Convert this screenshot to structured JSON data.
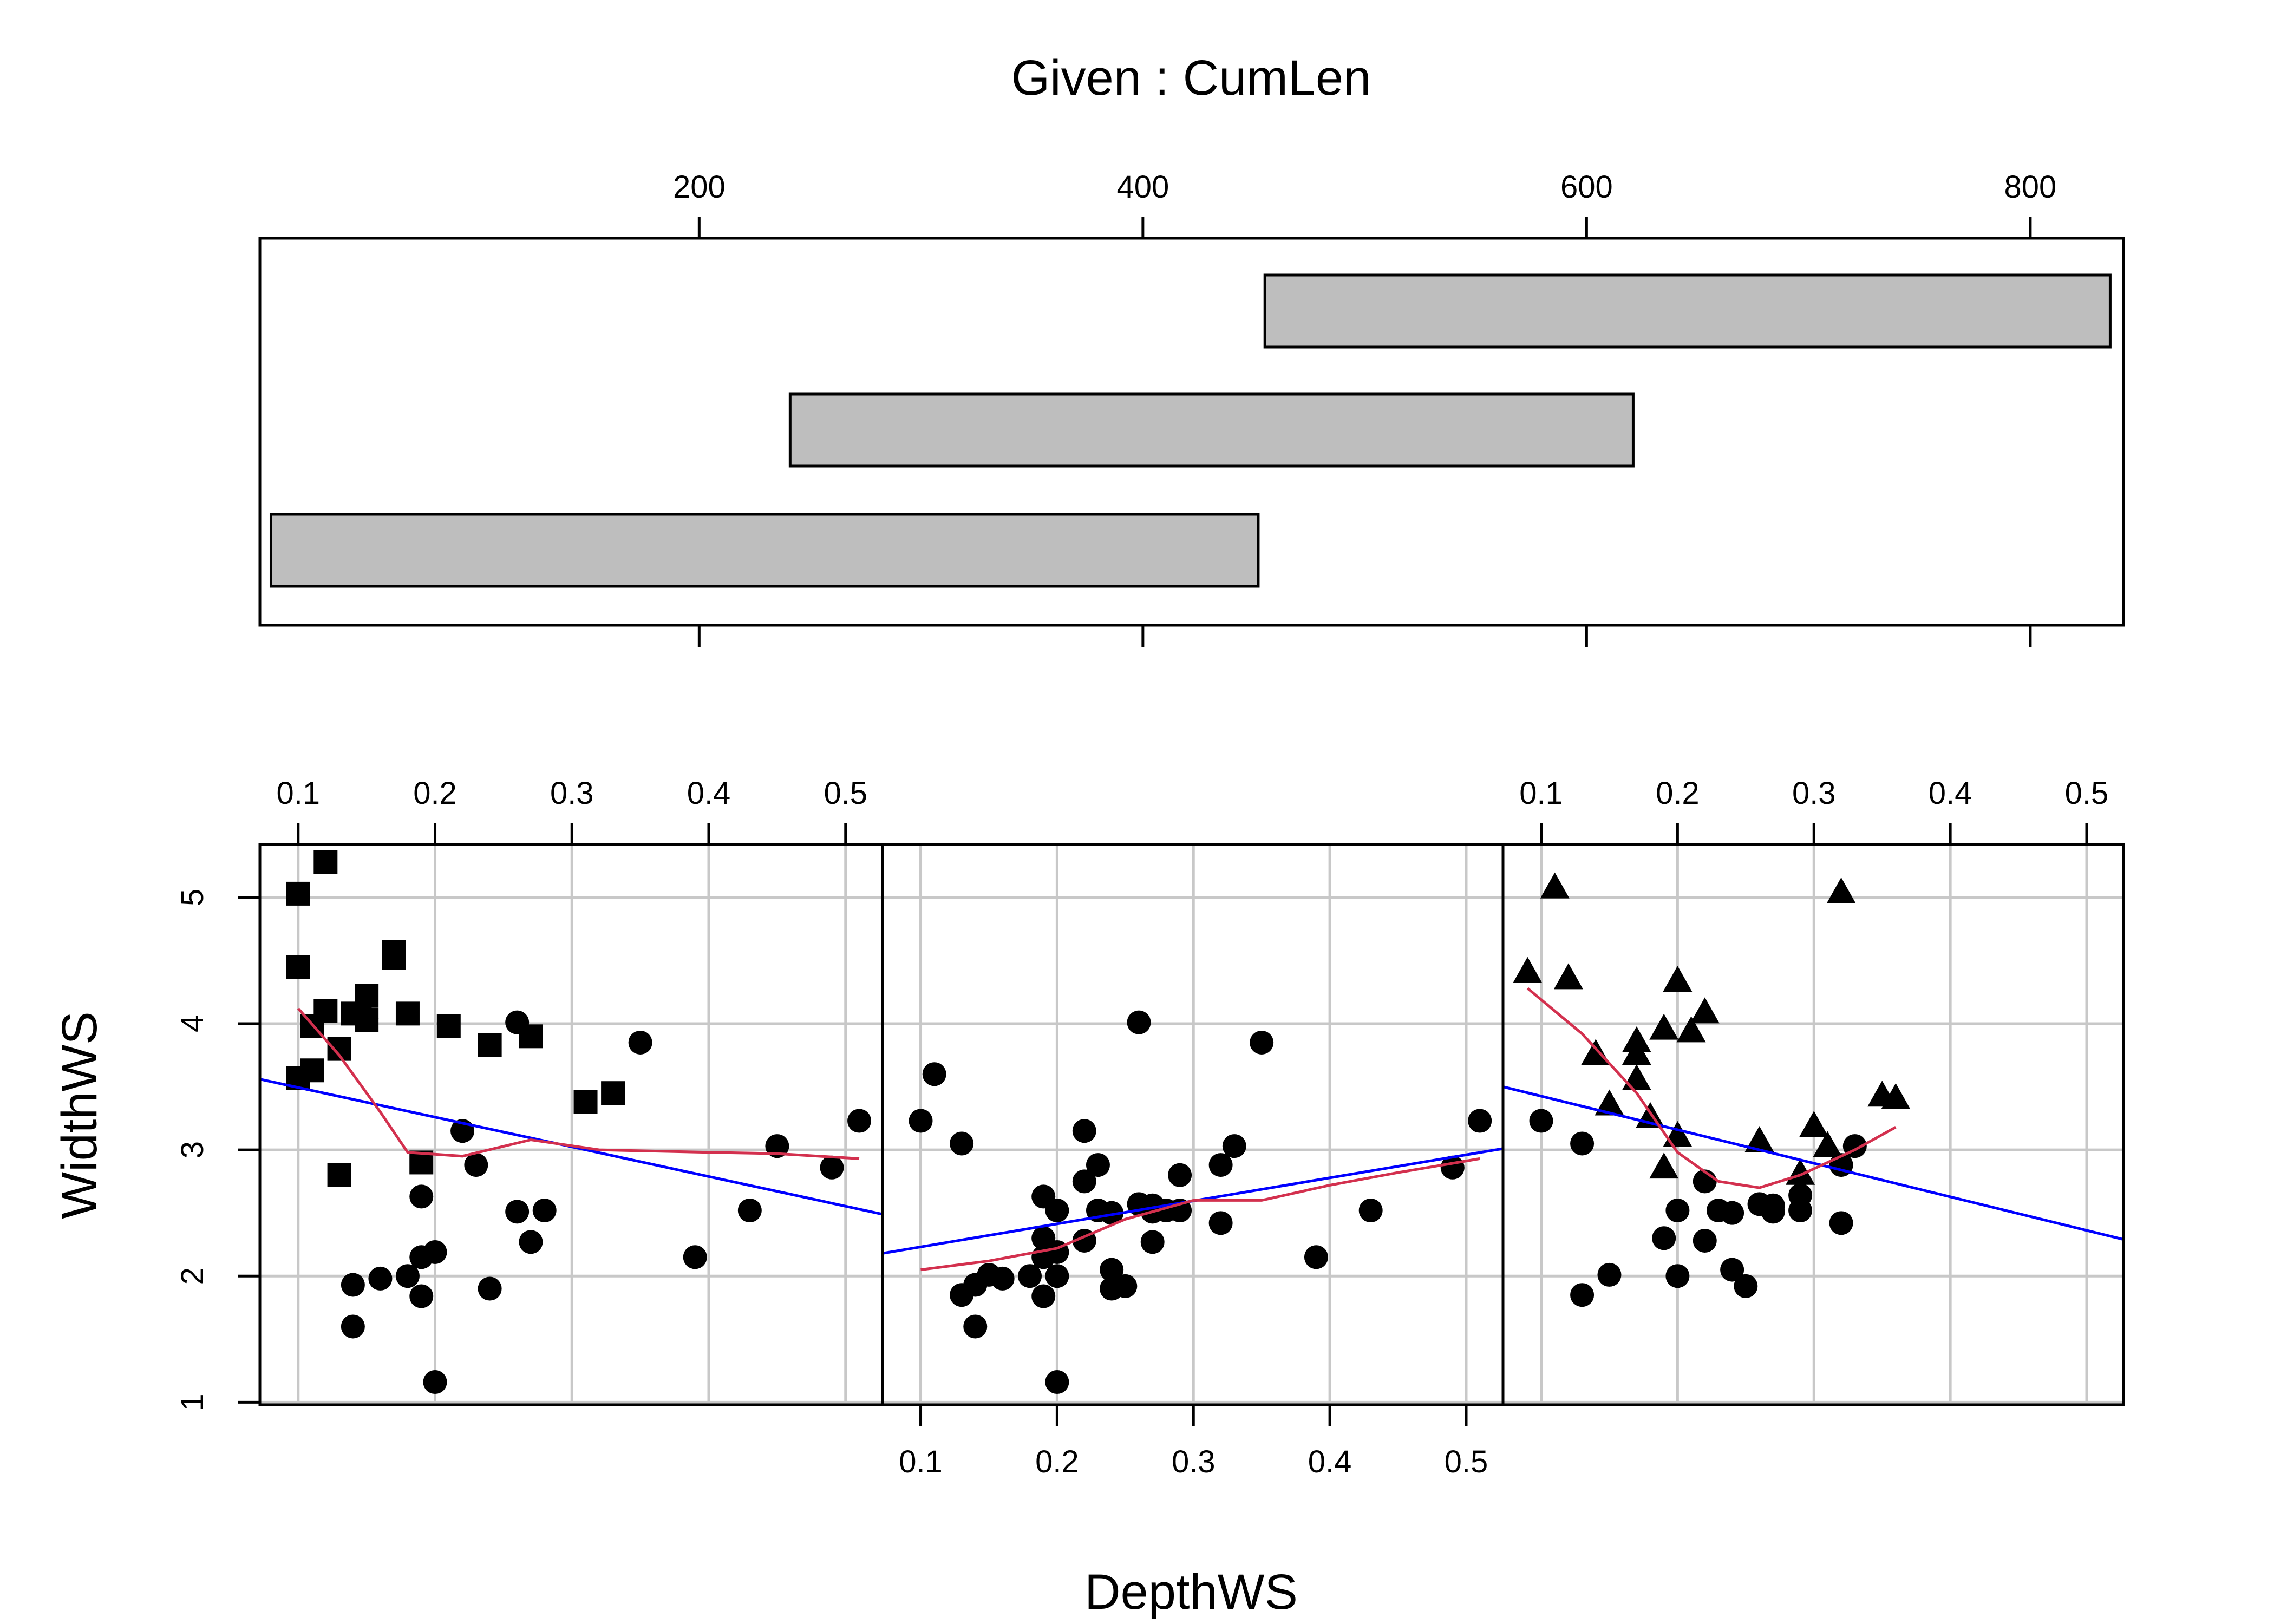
{
  "colors": {
    "background": "#ffffff",
    "points": "#000000",
    "grid": "#c8c8c8",
    "bar_fill": "#bebebe",
    "fit_line": "#0000ff",
    "smooth_line": "#d3304e"
  },
  "given": {
    "title": "Given : CumLen",
    "ticks": [
      200,
      400,
      600,
      800
    ],
    "xlim": [
      2,
      842
    ],
    "intervals": [
      [
        7,
        452
      ],
      [
        241,
        621
      ],
      [
        455,
        836
      ]
    ]
  },
  "chart_data": {
    "type": "scatter",
    "title": "",
    "xlabel": "DepthWS",
    "ylabel": "WidthWS",
    "xlim": [
      0.072,
      0.527
    ],
    "ylim": [
      0.98,
      5.42
    ],
    "xticks": [
      0.1,
      0.2,
      0.3,
      0.4,
      0.5
    ],
    "yticks": [
      1,
      2,
      3,
      4,
      5
    ],
    "grid": true,
    "panels": [
      {
        "name": "panel-1",
        "marker": "square",
        "points": [
          [
            0.1,
            5.03
          ],
          [
            0.12,
            5.28
          ],
          [
            0.1,
            4.45
          ],
          [
            0.17,
            4.57
          ],
          [
            0.17,
            4.52
          ],
          [
            0.15,
            4.22
          ],
          [
            0.12,
            4.1
          ],
          [
            0.14,
            4.08
          ],
          [
            0.15,
            4.03
          ],
          [
            0.11,
            3.98
          ],
          [
            0.18,
            4.08
          ],
          [
            0.21,
            3.98
          ],
          [
            0.24,
            3.83
          ],
          [
            0.27,
            3.9
          ],
          [
            0.13,
            3.8
          ],
          [
            0.11,
            3.63
          ],
          [
            0.1,
            3.57
          ],
          [
            0.33,
            3.45
          ],
          [
            0.31,
            3.38
          ],
          [
            0.13,
            2.8
          ],
          [
            0.19,
            2.9
          ]
        ],
        "circles": [
          [
            0.15,
            4.04
          ],
          [
            0.26,
            4.01
          ],
          [
            0.35,
            3.85
          ],
          [
            0.51,
            3.23
          ],
          [
            0.45,
            3.03
          ],
          [
            0.22,
            3.15
          ],
          [
            0.23,
            2.88
          ],
          [
            0.49,
            2.86
          ],
          [
            0.19,
            2.63
          ],
          [
            0.26,
            2.51
          ],
          [
            0.28,
            2.52
          ],
          [
            0.43,
            2.52
          ],
          [
            0.27,
            2.27
          ],
          [
            0.2,
            2.19
          ],
          [
            0.19,
            2.15
          ],
          [
            0.39,
            2.15
          ],
          [
            0.16,
            1.98
          ],
          [
            0.18,
            2.0
          ],
          [
            0.14,
            1.93
          ],
          [
            0.24,
            1.9
          ],
          [
            0.19,
            1.84
          ],
          [
            0.14,
            1.6
          ],
          [
            0.2,
            1.16
          ]
        ],
        "fit": [
          [
            0.072,
            3.56
          ],
          [
            0.527,
            2.49
          ]
        ],
        "smooth": [
          [
            0.1,
            4.12
          ],
          [
            0.13,
            3.75
          ],
          [
            0.16,
            3.3
          ],
          [
            0.18,
            2.98
          ],
          [
            0.22,
            2.95
          ],
          [
            0.27,
            3.08
          ],
          [
            0.32,
            3.0
          ],
          [
            0.4,
            2.98
          ],
          [
            0.45,
            2.97
          ],
          [
            0.51,
            2.93
          ]
        ]
      },
      {
        "name": "panel-2",
        "marker": "circle",
        "points": [
          [
            0.11,
            3.6
          ],
          [
            0.1,
            3.23
          ],
          [
            0.13,
            3.05
          ],
          [
            0.26,
            4.01
          ],
          [
            0.35,
            3.85
          ],
          [
            0.51,
            3.23
          ],
          [
            0.33,
            3.03
          ],
          [
            0.22,
            3.15
          ],
          [
            0.23,
            2.88
          ],
          [
            0.32,
            2.88
          ],
          [
            0.49,
            2.86
          ],
          [
            0.29,
            2.8
          ],
          [
            0.22,
            2.75
          ],
          [
            0.19,
            2.63
          ],
          [
            0.2,
            2.52
          ],
          [
            0.23,
            2.52
          ],
          [
            0.24,
            2.5
          ],
          [
            0.26,
            2.57
          ],
          [
            0.27,
            2.56
          ],
          [
            0.28,
            2.52
          ],
          [
            0.29,
            2.52
          ],
          [
            0.27,
            2.51
          ],
          [
            0.43,
            2.52
          ],
          [
            0.32,
            2.42
          ],
          [
            0.19,
            2.3
          ],
          [
            0.22,
            2.28
          ],
          [
            0.27,
            2.27
          ],
          [
            0.2,
            2.19
          ],
          [
            0.19,
            2.15
          ],
          [
            0.39,
            2.15
          ],
          [
            0.24,
            2.05
          ],
          [
            0.15,
            2.01
          ],
          [
            0.16,
            1.98
          ],
          [
            0.18,
            2.0
          ],
          [
            0.2,
            2.0
          ],
          [
            0.14,
            1.93
          ],
          [
            0.24,
            1.9
          ],
          [
            0.25,
            1.92
          ],
          [
            0.13,
            1.85
          ],
          [
            0.19,
            1.84
          ],
          [
            0.14,
            1.6
          ],
          [
            0.2,
            1.16
          ]
        ],
        "fit": [
          [
            0.072,
            2.18
          ],
          [
            0.527,
            3.01
          ]
        ],
        "smooth": [
          [
            0.1,
            2.05
          ],
          [
            0.15,
            2.12
          ],
          [
            0.2,
            2.22
          ],
          [
            0.25,
            2.45
          ],
          [
            0.3,
            2.6
          ],
          [
            0.35,
            2.6
          ],
          [
            0.4,
            2.72
          ],
          [
            0.45,
            2.82
          ],
          [
            0.51,
            2.93
          ]
        ]
      },
      {
        "name": "panel-3",
        "marker": "triangle",
        "points": [
          [
            0.11,
            5.07
          ],
          [
            0.32,
            5.03
          ],
          [
            0.09,
            4.4
          ],
          [
            0.12,
            4.35
          ],
          [
            0.2,
            4.33
          ],
          [
            0.22,
            4.08
          ],
          [
            0.19,
            3.95
          ],
          [
            0.21,
            3.93
          ],
          [
            0.17,
            3.85
          ],
          [
            0.14,
            3.75
          ],
          [
            0.17,
            3.75
          ],
          [
            0.17,
            3.55
          ],
          [
            0.35,
            3.42
          ],
          [
            0.36,
            3.4
          ],
          [
            0.15,
            3.35
          ],
          [
            0.18,
            3.25
          ],
          [
            0.2,
            3.1
          ],
          [
            0.3,
            3.18
          ],
          [
            0.26,
            3.06
          ],
          [
            0.31,
            3.02
          ],
          [
            0.29,
            2.8
          ],
          [
            0.19,
            2.85
          ]
        ],
        "circles": [
          [
            0.1,
            3.23
          ],
          [
            0.13,
            3.05
          ],
          [
            0.33,
            3.03
          ],
          [
            0.22,
            2.75
          ],
          [
            0.32,
            2.88
          ],
          [
            0.2,
            2.52
          ],
          [
            0.23,
            2.52
          ],
          [
            0.24,
            2.5
          ],
          [
            0.26,
            2.57
          ],
          [
            0.27,
            2.56
          ],
          [
            0.27,
            2.51
          ],
          [
            0.29,
            2.52
          ],
          [
            0.29,
            2.64
          ],
          [
            0.32,
            2.42
          ],
          [
            0.19,
            2.3
          ],
          [
            0.22,
            2.28
          ],
          [
            0.24,
            2.05
          ],
          [
            0.15,
            2.01
          ],
          [
            0.2,
            2.0
          ],
          [
            0.25,
            1.92
          ],
          [
            0.13,
            1.85
          ]
        ],
        "fit": [
          [
            0.072,
            3.5
          ],
          [
            0.527,
            2.29
          ]
        ],
        "smooth": [
          [
            0.09,
            4.28
          ],
          [
            0.13,
            3.92
          ],
          [
            0.17,
            3.45
          ],
          [
            0.2,
            2.98
          ],
          [
            0.23,
            2.75
          ],
          [
            0.26,
            2.7
          ],
          [
            0.29,
            2.8
          ],
          [
            0.33,
            3.0
          ],
          [
            0.36,
            3.18
          ]
        ]
      }
    ]
  }
}
